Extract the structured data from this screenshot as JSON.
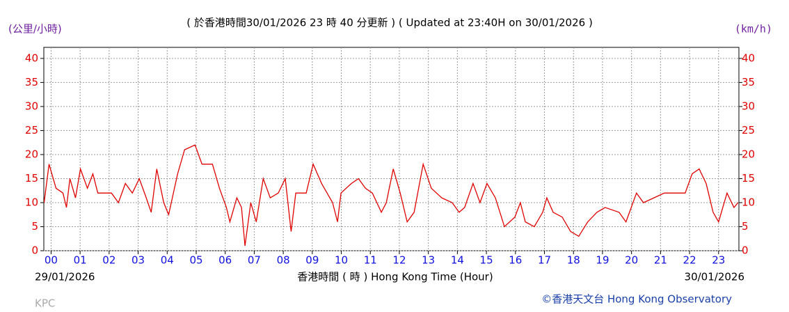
{
  "chart_data": {
    "type": "line",
    "title": "( 於香港時間30/01/2026 23 時 40 分更新 ) ( Updated at 23:40H on 30/01/2026 )",
    "y_label": "(公里/小時)",
    "y2_label": "(km/h)",
    "x_label": "香港時間 ( 時 ) Hong Kong Time (Hour)",
    "start_date": "29/01/2026",
    "end_date": "30/01/2026",
    "station": "KPC",
    "credit": "©香港天文台 Hong Kong Observatory",
    "color": "#e00000",
    "grid": true,
    "x": [
      -0.24,
      -0.07,
      0.17,
      0.41,
      0.53,
      0.65,
      0.84,
      1.01,
      1.25,
      1.44,
      1.61,
      1.8,
      2.08,
      2.32,
      2.56,
      2.8,
      3.04,
      3.28,
      3.45,
      3.64,
      3.88,
      4.05,
      4.36,
      4.6,
      4.96,
      5.2,
      5.56,
      5.8,
      6.04,
      6.16,
      6.4,
      6.56,
      6.68,
      6.88,
      7.07,
      7.31,
      7.55,
      7.83,
      8.07,
      8.27,
      8.43,
      8.79,
      9.03,
      9.32,
      9.51,
      9.7,
      9.87,
      9.99,
      10.35,
      10.59,
      10.83,
      11.07,
      11.38,
      11.55,
      11.79,
      12.03,
      12.27,
      12.51,
      12.82,
      13.1,
      13.46,
      13.82,
      14.06,
      14.25,
      14.54,
      14.78,
      15.02,
      15.31,
      15.62,
      15.98,
      16.17,
      16.34,
      16.65,
      16.94,
      17.08,
      17.3,
      17.61,
      17.9,
      18.18,
      18.49,
      18.81,
      19.09,
      19.57,
      19.81,
      20.17,
      20.41,
      20.77,
      21.13,
      21.49,
      21.85,
      22.09,
      22.33,
      22.57,
      22.81,
      23.0,
      23.29,
      23.53,
      23.67
    ],
    "values": [
      10,
      18,
      13,
      12,
      9,
      15,
      11,
      17,
      13,
      16,
      12,
      12,
      12,
      10,
      14,
      12,
      15,
      11,
      8,
      17,
      10,
      7.5,
      16,
      21,
      22,
      18,
      18,
      13,
      9,
      6,
      11,
      9,
      1,
      10,
      6,
      15,
      11,
      12,
      15,
      4,
      12,
      12,
      18,
      14,
      12,
      10,
      6,
      12,
      14,
      15,
      13,
      12,
      8,
      10,
      17,
      12,
      6,
      8,
      18,
      13,
      11,
      10,
      8,
      9,
      14,
      10,
      14,
      11,
      5,
      7,
      10,
      6,
      5,
      8,
      11,
      8,
      7,
      4,
      3,
      6,
      8,
      9,
      8,
      6,
      12,
      10,
      11,
      12,
      12,
      12,
      16,
      17,
      14,
      8,
      6,
      12,
      9,
      10
    ],
    "xlim": [
      -0.25,
      23.7
    ],
    "xticks": [
      {
        "value": 0,
        "label": "00"
      },
      {
        "value": 1,
        "label": "01"
      },
      {
        "value": 2,
        "label": "02"
      },
      {
        "value": 3,
        "label": "03"
      },
      {
        "value": 4,
        "label": "04"
      },
      {
        "value": 5,
        "label": "05"
      },
      {
        "value": 6,
        "label": "06"
      },
      {
        "value": 7,
        "label": "07"
      },
      {
        "value": 8,
        "label": "08"
      },
      {
        "value": 9,
        "label": "09"
      },
      {
        "value": 10,
        "label": "10"
      },
      {
        "value": 11,
        "label": "11"
      },
      {
        "value": 12,
        "label": "12"
      },
      {
        "value": 13,
        "label": "13"
      },
      {
        "value": 14,
        "label": "14"
      },
      {
        "value": 15,
        "label": "15"
      },
      {
        "value": 16,
        "label": "16"
      },
      {
        "value": 17,
        "label": "17"
      },
      {
        "value": 18,
        "label": "18"
      },
      {
        "value": 19,
        "label": "19"
      },
      {
        "value": 20,
        "label": "20"
      },
      {
        "value": 21,
        "label": "21"
      },
      {
        "value": 22,
        "label": "22"
      },
      {
        "value": 23,
        "label": "23"
      }
    ],
    "ylim": [
      0,
      42.3
    ],
    "yticks": [
      0,
      5,
      10,
      15,
      20,
      25,
      30,
      35,
      40
    ],
    "y2lim": [
      0,
      42.3
    ],
    "y2ticks": [
      0,
      5,
      10,
      15,
      20,
      25,
      30,
      35,
      40
    ]
  }
}
